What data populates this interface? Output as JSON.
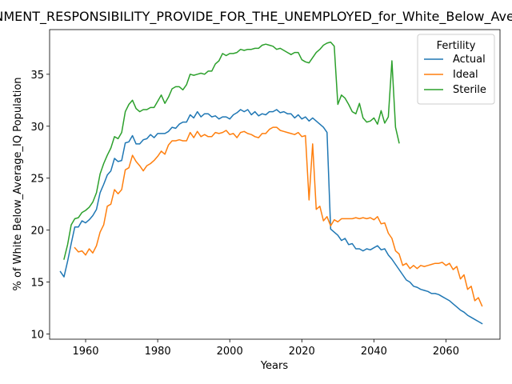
{
  "chart_data": {
    "type": "line",
    "title": "GOVERNMENT_RESPONSIBILITY_PROVIDE_FOR_THE_UNEMPLOYED_for_White_Below_Average_IQ",
    "xlabel": "Years",
    "ylabel": "% of White Below_Average_IQ Population",
    "xlim": [
      1950,
      2075
    ],
    "ylim": [
      9.5,
      39.3
    ],
    "xticks": [
      1960,
      1980,
      2000,
      2020,
      2040,
      2060
    ],
    "yticks": [
      10,
      15,
      20,
      25,
      30,
      35
    ],
    "grid": false,
    "legend": {
      "title": "Fertility",
      "position": "top-right"
    },
    "series": [
      {
        "name": "Actual",
        "color": "#1f77b4",
        "x": [
          1953,
          1954,
          1955,
          1956,
          1957,
          1958,
          1959,
          1960,
          1961,
          1962,
          1963,
          1964,
          1965,
          1966,
          1967,
          1968,
          1969,
          1970,
          1971,
          1972,
          1973,
          1974,
          1975,
          1976,
          1977,
          1978,
          1979,
          1980,
          1981,
          1982,
          1983,
          1984,
          1985,
          1986,
          1987,
          1988,
          1989,
          1990,
          1991,
          1992,
          1993,
          1994,
          1995,
          1996,
          1997,
          1998,
          1999,
          2000,
          2001,
          2002,
          2003,
          2004,
          2005,
          2006,
          2007,
          2008,
          2009,
          2010,
          2011,
          2012,
          2013,
          2014,
          2015,
          2016,
          2017,
          2018,
          2019,
          2020,
          2021,
          2022,
          2023,
          2024,
          2025,
          2026,
          2027,
          2028,
          2030,
          2031,
          2032,
          2033,
          2034,
          2035,
          2036,
          2037,
          2038,
          2039,
          2040,
          2041,
          2042,
          2043,
          2044,
          2045,
          2046,
          2047,
          2048,
          2049,
          2050,
          2051,
          2052,
          2053,
          2054,
          2055,
          2056,
          2057,
          2058,
          2059,
          2060,
          2061,
          2062,
          2063,
          2064,
          2065,
          2066,
          2067,
          2068,
          2069,
          2070
        ],
        "y": [
          16.0,
          15.5,
          17.0,
          18.7,
          20.3,
          20.3,
          20.9,
          20.7,
          21.0,
          21.4,
          22.0,
          23.6,
          24.4,
          25.3,
          25.7,
          26.9,
          26.6,
          26.7,
          28.4,
          28.5,
          29.1,
          28.3,
          28.3,
          28.7,
          28.8,
          29.2,
          28.9,
          29.3,
          29.3,
          29.3,
          29.5,
          29.9,
          29.8,
          30.2,
          30.4,
          30.4,
          31.1,
          30.8,
          31.4,
          30.9,
          31.2,
          31.2,
          30.9,
          31.0,
          30.7,
          30.9,
          30.9,
          30.7,
          31.1,
          31.3,
          31.6,
          31.4,
          31.6,
          31.1,
          31.4,
          31.0,
          31.2,
          31.1,
          31.4,
          31.4,
          31.6,
          31.3,
          31.4,
          31.2,
          31.2,
          30.8,
          31.1,
          30.7,
          30.9,
          30.5,
          30.8,
          30.5,
          30.2,
          29.9,
          29.4,
          20.1,
          19.5,
          19.0,
          19.2,
          18.6,
          18.7,
          18.2,
          18.2,
          18.0,
          18.2,
          18.1,
          18.3,
          18.5,
          18.1,
          18.2,
          17.6,
          17.2,
          16.7,
          16.2,
          15.7,
          15.2,
          15.0,
          14.6,
          14.5,
          14.3,
          14.2,
          14.1,
          13.9,
          13.9,
          13.8,
          13.6,
          13.4,
          13.2,
          12.9,
          12.6,
          12.3,
          12.1,
          11.8,
          11.6,
          11.4,
          11.2,
          11.0
        ]
      },
      {
        "name": "Ideal",
        "color": "#ff7f0e",
        "x": [
          1957,
          1958,
          1959,
          1960,
          1961,
          1962,
          1963,
          1964,
          1965,
          1966,
          1967,
          1968,
          1969,
          1970,
          1971,
          1972,
          1973,
          1974,
          1975,
          1976,
          1977,
          1978,
          1979,
          1980,
          1981,
          1982,
          1983,
          1984,
          1985,
          1986,
          1987,
          1988,
          1989,
          1990,
          1991,
          1992,
          1993,
          1994,
          1995,
          1996,
          1997,
          1998,
          1999,
          2000,
          2001,
          2002,
          2003,
          2004,
          2005,
          2006,
          2007,
          2008,
          2009,
          2010,
          2011,
          2012,
          2013,
          2014,
          2015,
          2016,
          2017,
          2018,
          2019,
          2020,
          2021,
          2022,
          2023,
          2024,
          2025,
          2026,
          2027,
          2028,
          2029,
          2030,
          2031,
          2032,
          2033,
          2034,
          2035,
          2036,
          2037,
          2038,
          2039,
          2040,
          2041,
          2042,
          2043,
          2044,
          2045,
          2046,
          2047,
          2048,
          2049,
          2050,
          2051,
          2052,
          2053,
          2054,
          2055,
          2056,
          2057,
          2058,
          2059,
          2060,
          2061,
          2062,
          2063,
          2064,
          2065,
          2066,
          2067,
          2068,
          2069,
          2070
        ],
        "y": [
          18.3,
          17.9,
          18.0,
          17.6,
          18.2,
          17.8,
          18.5,
          19.8,
          20.5,
          22.3,
          22.5,
          23.9,
          23.5,
          23.9,
          25.8,
          26.0,
          27.2,
          26.6,
          26.2,
          25.7,
          26.2,
          26.4,
          26.7,
          27.1,
          27.6,
          27.3,
          28.2,
          28.6,
          28.6,
          28.7,
          28.6,
          28.6,
          29.4,
          28.9,
          29.5,
          29.0,
          29.2,
          29.0,
          29.0,
          29.4,
          29.3,
          29.4,
          29.6,
          29.2,
          29.3,
          28.9,
          29.4,
          29.5,
          29.3,
          29.2,
          29.0,
          28.9,
          29.3,
          29.3,
          29.7,
          29.9,
          29.9,
          29.6,
          29.5,
          29.4,
          29.3,
          29.2,
          29.4,
          29.0,
          29.1,
          22.9,
          28.3,
          22.0,
          22.3,
          20.9,
          21.3,
          20.4,
          21.0,
          20.8,
          21.1,
          21.1,
          21.1,
          21.1,
          21.2,
          21.1,
          21.2,
          21.1,
          21.2,
          21.0,
          21.3,
          20.6,
          20.7,
          19.7,
          19.2,
          18.0,
          17.7,
          16.6,
          16.8,
          16.3,
          16.6,
          16.3,
          16.6,
          16.5,
          16.6,
          16.7,
          16.8,
          16.8,
          16.9,
          16.6,
          16.8,
          16.2,
          16.5,
          15.3,
          15.7,
          14.3,
          14.6,
          13.2,
          13.5,
          12.7
        ]
      },
      {
        "name": "Sterile",
        "color": "#2ca02c",
        "x": [
          1954,
          1955,
          1956,
          1957,
          1958,
          1959,
          1960,
          1961,
          1962,
          1963,
          1964,
          1965,
          1966,
          1967,
          1968,
          1969,
          1970,
          1971,
          1972,
          1973,
          1974,
          1975,
          1976,
          1977,
          1978,
          1979,
          1980,
          1981,
          1982,
          1983,
          1984,
          1985,
          1986,
          1987,
          1988,
          1989,
          1990,
          1991,
          1992,
          1993,
          1994,
          1995,
          1996,
          1997,
          1998,
          1999,
          2000,
          2001,
          2002,
          2003,
          2004,
          2005,
          2006,
          2007,
          2008,
          2009,
          2010,
          2011,
          2012,
          2013,
          2014,
          2015,
          2016,
          2017,
          2018,
          2019,
          2020,
          2021,
          2022,
          2023,
          2024,
          2025,
          2026,
          2027,
          2028,
          2029,
          2030,
          2031,
          2032,
          2033,
          2034,
          2035,
          2036,
          2037,
          2038,
          2039,
          2040,
          2041,
          2042,
          2043,
          2044,
          2045,
          2046,
          2047
        ],
        "y": [
          17.2,
          18.6,
          20.5,
          21.1,
          21.2,
          21.7,
          21.9,
          22.2,
          22.7,
          23.6,
          25.4,
          26.4,
          27.2,
          27.9,
          29.0,
          28.8,
          29.4,
          31.4,
          32.1,
          32.5,
          31.7,
          31.4,
          31.6,
          31.6,
          31.8,
          31.8,
          32.4,
          33.0,
          32.2,
          32.8,
          33.6,
          33.8,
          33.8,
          33.5,
          34.0,
          35.0,
          34.9,
          35.0,
          35.1,
          35.0,
          35.3,
          35.3,
          36.0,
          36.3,
          37.0,
          36.8,
          37.0,
          37.0,
          37.1,
          37.4,
          37.3,
          37.4,
          37.4,
          37.5,
          37.5,
          37.8,
          37.9,
          37.8,
          37.7,
          37.4,
          37.5,
          37.3,
          37.1,
          36.9,
          37.1,
          37.1,
          36.4,
          36.2,
          36.1,
          36.6,
          37.1,
          37.4,
          37.8,
          38.0,
          38.1,
          37.7,
          32.1,
          33.0,
          32.7,
          32.1,
          31.4,
          31.2,
          32.2,
          30.8,
          30.4,
          30.5,
          30.8,
          30.2,
          31.5,
          30.3,
          30.9,
          36.3,
          29.9,
          28.4
        ]
      }
    ]
  }
}
